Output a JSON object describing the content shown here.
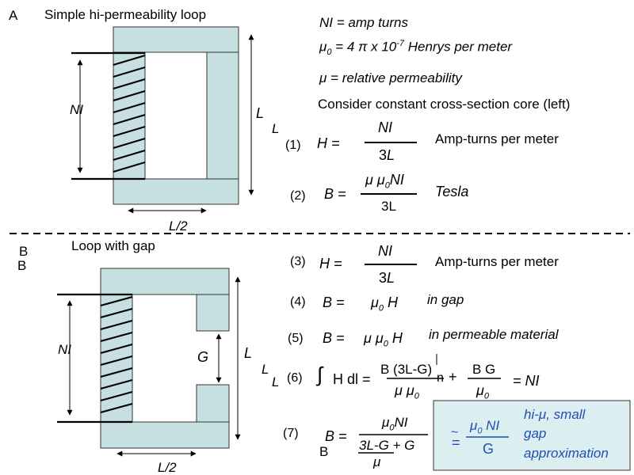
{
  "section_a": {
    "letter": "A",
    "title": "Simple hi-permeability loop",
    "coil_label": "NI",
    "length_label": "L",
    "length_label_stray": "L",
    "half_width_label": "L/2"
  },
  "definitions": {
    "amp_turns": "NI = amp turns",
    "mu0_prefix": "μ",
    "mu0_sub": "0",
    "mu0_mid": " = 4 π x 10",
    "mu0_exp": "-7",
    "mu0_suffix": " Henrys per meter",
    "mu_rel": "μ = relative permeability",
    "consider": "Consider constant cross-section core (left)"
  },
  "eq1": {
    "number": "(1)",
    "lhs": "H =",
    "num": "NI",
    "den_a": "3",
    "den_b": "L",
    "unit": "Amp-turns per meter"
  },
  "eq2": {
    "number": "(2)",
    "lhs": "B =",
    "num_a": "μ μ",
    "num_sub": "0",
    "num_b": "NI",
    "den": "3L",
    "unit": "Tesla"
  },
  "section_b": {
    "letter": "B",
    "letter_dup": "B",
    "title": "Loop with gap",
    "coil_label": "NI",
    "gap_label": "G",
    "length_label": "L",
    "length_label_stray": "L",
    "length_label_stray2": "L",
    "half_width_label": "L/2"
  },
  "eq3": {
    "number": "(3)",
    "lhs": "H =",
    "num": "NI",
    "den_a": "3",
    "den_b": "L",
    "unit": "Amp-turns per meter"
  },
  "eq4": {
    "number": "(4)",
    "lhs": "B =",
    "rhs_a": "μ",
    "rhs_sub": "0",
    "rhs_b": " H",
    "note": "in gap"
  },
  "eq5": {
    "number": "(5)",
    "lhs": "B =",
    "rhs_a": "μ μ",
    "rhs_sub": "0",
    "rhs_b": " H",
    "note": "in permeable material"
  },
  "eq6": {
    "number": "(6)",
    "integral": "∫",
    "lhs": "H dl =",
    "t1_num": "B (3L-G)",
    "t1_den_a": "μ  μ",
    "t1_den_sub": "0",
    "stray": "n",
    "plus": "+",
    "t2_num": "B G",
    "t2_den_a": "μ",
    "t2_den_sub": "0",
    "rhs": "= NI"
  },
  "eq7": {
    "number": "(7)",
    "lhs": "B =",
    "lhs_dup": "B",
    "num_a": "μ",
    "num_sub": "0",
    "num_b": "NI",
    "den_a": "3L-G",
    "den_b": " + G",
    "den_mu": "μ"
  },
  "approx_box": {
    "approx": "~",
    "equals": "=",
    "num_a": "μ",
    "num_sub": "0",
    "num_b": " NI",
    "den": "G",
    "line1": "hi-μ, small",
    "line2": "gap",
    "line3": "approximation"
  },
  "colors": {
    "core_fill": "#c6e0e2",
    "box_fill": "#dbeef0",
    "accent": "#1f4fb4"
  }
}
